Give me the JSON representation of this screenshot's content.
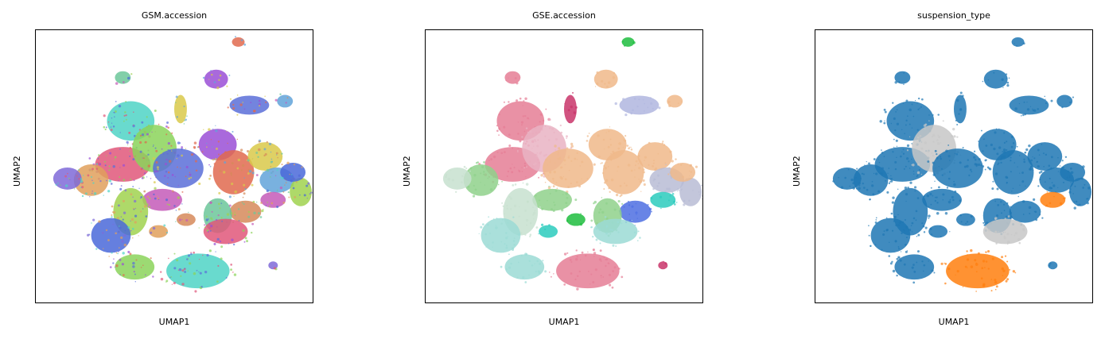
{
  "figure": {
    "panels": [
      {
        "title": "GSM.accession",
        "xlabel": "UMAP1",
        "ylabel": "UMAP2",
        "palette": [
          "#4fd4c6",
          "#e0577a",
          "#8bd35a",
          "#5b6fd8",
          "#9a4fd6",
          "#e06a4f",
          "#d9c94a",
          "#62a3d9",
          "#d68a5a",
          "#6cc79a",
          "#c45bb8",
          "#a0d24f",
          "#4a68d9",
          "#e1a05c",
          "#7f6ad8"
        ]
      },
      {
        "title": "GSE.accession",
        "xlabel": "UMAP1",
        "ylabel": "UMAP2",
        "palette": [
          "#e57e95",
          "#8fd18b",
          "#f0b98a",
          "#e9b3c3",
          "#4d6fe2",
          "#ee9b1b",
          "#1ebd3e",
          "#c7e0cf",
          "#9bdbd5",
          "#c9356a",
          "#b0b6df",
          "#2bcbbd",
          "#0d47a1",
          "#b07090",
          "#b8bcd5"
        ]
      },
      {
        "title": "suspension_type",
        "xlabel": "UMAP1",
        "ylabel": "UMAP2",
        "palette": [
          "#1f77b4",
          "#ff7f0e",
          "#c7c7c7"
        ]
      }
    ]
  },
  "chart_data": [
    {
      "type": "scatter",
      "title": "GSM.accession",
      "xlabel": "UMAP1",
      "ylabel": "UMAP2",
      "ticks": "none",
      "legend": "none",
      "color_by": "GSM.accession"
    },
    {
      "type": "scatter",
      "title": "GSE.accession",
      "xlabel": "UMAP1",
      "ylabel": "UMAP2",
      "ticks": "none",
      "legend": "none",
      "color_by": "GSE.accession"
    },
    {
      "type": "scatter",
      "title": "suspension_type",
      "xlabel": "UMAP1",
      "ylabel": "UMAP2",
      "ticks": "none",
      "legend": "none",
      "color_by": "suspension_type"
    }
  ]
}
